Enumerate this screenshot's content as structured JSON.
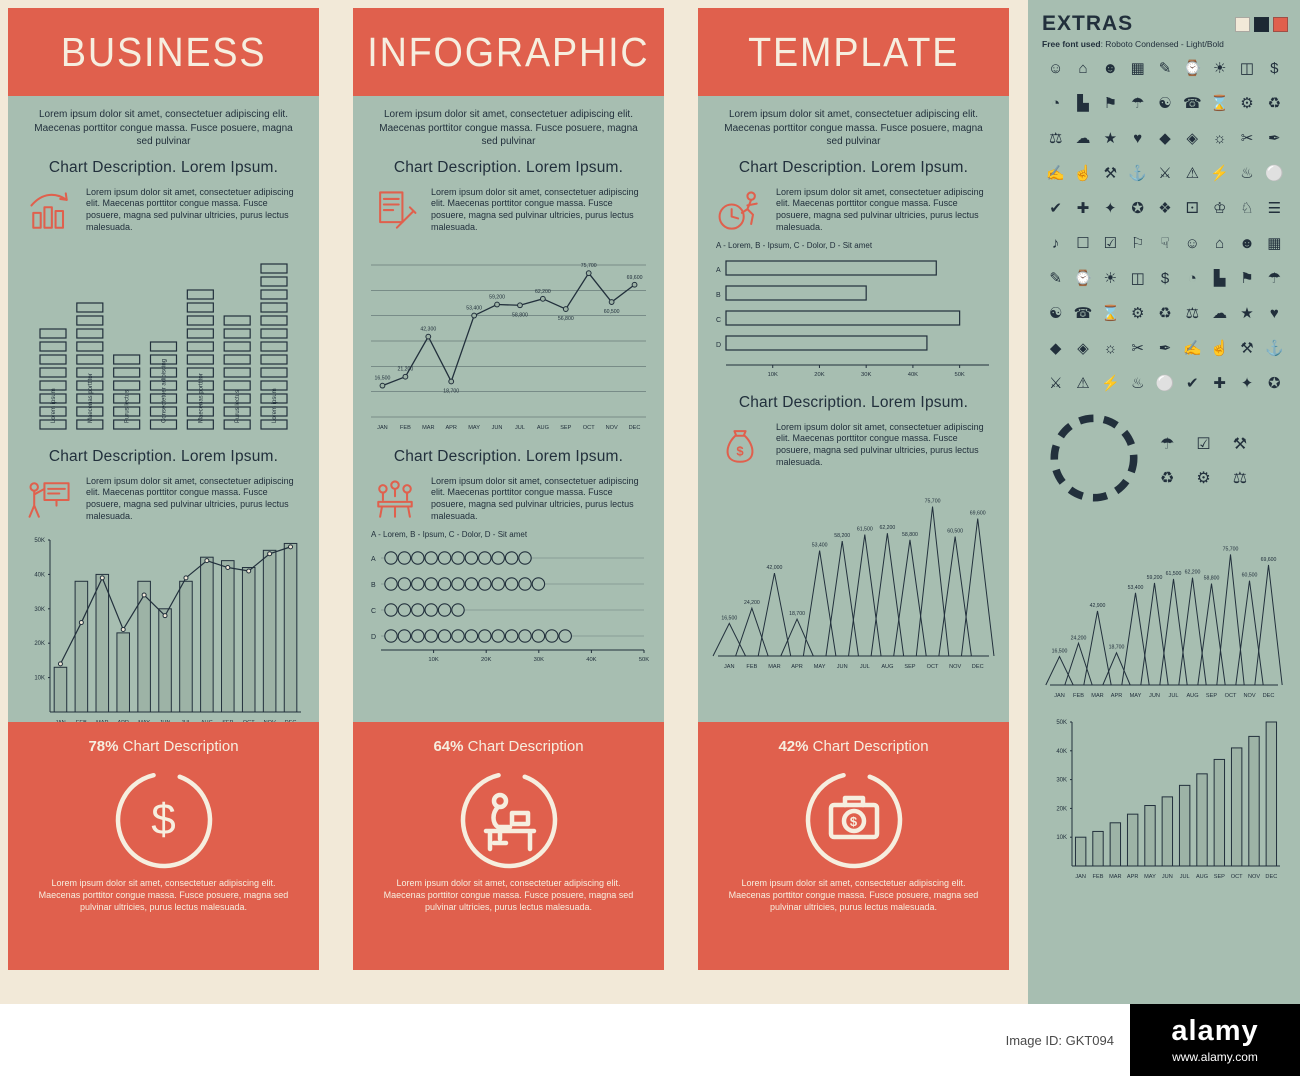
{
  "colors": {
    "cream": "#F2E9D8",
    "red": "#E0604D",
    "green": "#A7BEB1",
    "navy": "#22303C",
    "bar_fill": "#9DB3A6"
  },
  "panels": [
    {
      "title": "BUSINESS",
      "intro": "Lorem ipsum dolor sit amet, consectetuer adipiscing elit. Maecenas porttitor congue massa. Fusce posuere, magna sed pulvinar",
      "sections": [
        {
          "heading": "Chart Description. Lorem Ipsum.",
          "icon": "growth-chart-icon",
          "icon_glyph": "",
          "text": "Lorem ipsum dolor sit amet, consectetuer adipiscing elit. Maecenas porttitor congue massa. Fusce posuere, magna sed pulvinar ultricies, purus lectus malesuada."
        },
        {
          "heading": "Chart Description. Lorem Ipsum.",
          "icon": "presentation-person-icon",
          "icon_glyph": "",
          "text": "Lorem ipsum dolor sit amet, consectetuer adipiscing elit. Maecenas porttitor congue massa. Fusce posuere, magna sed pulvinar ultricies, purus lectus malesuada."
        }
      ],
      "footer": {
        "percent": "78%",
        "label": "Chart Description",
        "icon": "dollar-circle-icon",
        "icon_glyph": "$",
        "text": "Lorem ipsum dolor sit amet, consectetuer adipiscing elit. Maecenas porttitor congue massa. Fusce posuere, magna sed pulvinar ultricies, purus lectus malesuada."
      }
    },
    {
      "title": "INFOGRAPHIC",
      "intro": "Lorem ipsum dolor sit amet, consectetuer adipiscing elit. Maecenas porttitor congue massa. Fusce posuere, magna sed pulvinar",
      "sections": [
        {
          "heading": "Chart Description. Lorem Ipsum.",
          "icon": "document-pen-icon",
          "icon_glyph": "",
          "text": "Lorem ipsum dolor sit amet, consectetuer adipiscing elit. Maecenas porttitor congue massa. Fusce posuere, magna sed pulvinar ultricies, purus lectus malesuada."
        },
        {
          "heading": "Chart Description. Lorem Ipsum.",
          "icon": "meeting-icon",
          "icon_glyph": "",
          "text": "Lorem ipsum dolor sit amet, consectetuer adipiscing elit. Maecenas porttitor congue massa. Fusce posuere, magna sed pulvinar ultricies, purus lectus malesuada."
        }
      ],
      "footer": {
        "percent": "64%",
        "label": "Chart Description",
        "icon": "workstation-circle-icon",
        "icon_glyph": "",
        "text": "Lorem ipsum dolor sit amet, consectetuer adipiscing elit. Maecenas porttitor congue massa. Fusce posuere, magna sed pulvinar ultricies, purus lectus malesuada."
      }
    },
    {
      "title": "TEMPLATE",
      "intro": "Lorem ipsum dolor sit amet, consectetuer adipiscing elit. Maecenas porttitor congue massa. Fusce posuere, magna sed pulvinar",
      "sections": [
        {
          "heading": "Chart Description. Lorem Ipsum.",
          "icon": "deadline-runner-icon",
          "icon_glyph": "",
          "text": "Lorem ipsum dolor sit amet, consectetuer adipiscing elit. Maecenas porttitor congue massa. Fusce posuere, magna sed pulvinar ultricies, purus lectus malesuada."
        },
        {
          "heading": "Chart Description. Lorem Ipsum.",
          "icon": "money-bag-icon",
          "icon_glyph": "$",
          "text": "Lorem ipsum dolor sit amet, consectetuer adipiscing elit. Maecenas porttitor congue massa. Fusce posuere, magna sed pulvinar ultricies, purus lectus malesuada."
        }
      ],
      "footer": {
        "percent": "42%",
        "label": "Chart Description",
        "icon": "briefcase-circle-icon",
        "icon_glyph": "$",
        "text": "Lorem ipsum dolor sit amet, consectetuer adipiscing elit. Maecenas porttitor congue massa. Fusce posuere, magna sed pulvinar ultricies, purus lectus malesuada."
      }
    }
  ],
  "chart_data": [
    {
      "id": "business-equalizer",
      "type": "bar",
      "variant": "equalizer-stacked-segments",
      "grid": false,
      "columns": [
        {
          "label": "Lorem ipsum",
          "segments": 8
        },
        {
          "label": "Maecenas porttitor",
          "segments": 10
        },
        {
          "label": "Purus lectus",
          "segments": 6
        },
        {
          "label": "Consectetuer adipiscing",
          "segments": 7
        },
        {
          "label": "Maecenas porttitor",
          "segments": 11
        },
        {
          "label": "Purus lectus",
          "segments": 9
        },
        {
          "label": "Lorem ipsum",
          "segments": 13
        }
      ]
    },
    {
      "id": "business-monthly-bars",
      "type": "bar",
      "categories": [
        "JAN",
        "FEB",
        "MAR",
        "APR",
        "MAY",
        "JUN",
        "JUL",
        "AUG",
        "SEP",
        "OCT",
        "NOV",
        "DEC"
      ],
      "values": [
        13000,
        38000,
        40000,
        23000,
        38000,
        30000,
        38000,
        45000,
        44000,
        42000,
        47000,
        49000
      ],
      "overlay_line": [
        14000,
        26000,
        39000,
        24000,
        34000,
        28000,
        39000,
        44000,
        42000,
        41000,
        46000,
        48000
      ],
      "yticks": [
        "10K",
        "20K",
        "30K",
        "40K",
        "50K"
      ],
      "ymax": 50000,
      "grid": false
    },
    {
      "id": "infographic-line",
      "type": "line",
      "grid": true,
      "ymax": 80000,
      "x": [
        "JAN",
        "FEB",
        "MAR",
        "APR",
        "MAY",
        "JUN",
        "JUL",
        "AUG",
        "SEP",
        "OCT",
        "NOV",
        "DEC"
      ],
      "values": [
        16500,
        21200,
        42300,
        18700,
        53400,
        59200,
        58800,
        62200,
        56800,
        75700,
        60500,
        69600
      ],
      "labels": [
        "16,500",
        "21,200",
        "42,300",
        "18,700",
        "53,400",
        "59,200",
        "58,800",
        "62,200",
        "56,800",
        "75,700",
        "60,500",
        "69,600"
      ]
    },
    {
      "id": "infographic-dots",
      "type": "scatter",
      "variant": "dot-rows",
      "legend": "A - Lorem, B - Ipsum, C - Dolor, D - Sit amet",
      "rows": [
        {
          "label": "A",
          "count": 11
        },
        {
          "label": "B",
          "count": 12
        },
        {
          "label": "C",
          "count": 6
        },
        {
          "label": "D",
          "count": 14
        }
      ],
      "xticks": [
        "10K",
        "20K",
        "30K",
        "40K",
        "50K"
      ]
    },
    {
      "id": "template-hbars",
      "type": "bar",
      "variant": "horizontal",
      "legend": "A - Lorem, B - Ipsum, C - Dolor, D - Sit amet",
      "rows": [
        {
          "label": "A",
          "value": 45000
        },
        {
          "label": "B",
          "value": 30000
        },
        {
          "label": "C",
          "value": 50000
        },
        {
          "label": "D",
          "value": 43000
        }
      ],
      "xticks": [
        "10K",
        "20K",
        "30K",
        "40K",
        "50K"
      ],
      "xmax": 55000
    },
    {
      "id": "template-peaks",
      "type": "area",
      "variant": "peaks",
      "ymax": 80000,
      "x": [
        "JAN",
        "FEB",
        "MAR",
        "APR",
        "MAY",
        "JUN",
        "JUL",
        "AUG",
        "SEP",
        "OCT",
        "NOV",
        "DEC"
      ],
      "values": [
        16500,
        24200,
        42000,
        18700,
        53400,
        58200,
        61500,
        62200,
        58800,
        75700,
        60500,
        69600
      ],
      "labels": [
        "16,500",
        "24,200",
        "42,000",
        "18,700",
        "53,400",
        "58,200",
        "61,500",
        "62,200",
        "58,800",
        "75,700",
        "60,500",
        "69,600"
      ]
    },
    {
      "id": "extras-peaks",
      "type": "area",
      "variant": "peaks",
      "ymax": 80000,
      "x": [
        "JAN",
        "FEB",
        "MAR",
        "APR",
        "MAY",
        "JUN",
        "JUL",
        "AUG",
        "SEP",
        "OCT",
        "NOV",
        "DEC"
      ],
      "values": [
        16500,
        24200,
        42900,
        18700,
        53400,
        59200,
        61500,
        62200,
        58800,
        75700,
        60500,
        69600
      ],
      "labels": [
        "16,500",
        "24,200",
        "42,900",
        "18,700",
        "53,400",
        "59,200",
        "61,500",
        "62,200",
        "58,800",
        "75,700",
        "60,500",
        "69,600"
      ]
    },
    {
      "id": "extras-bars",
      "type": "bar",
      "categories": [
        "JAN",
        "FEB",
        "MAR",
        "APR",
        "MAY",
        "JUN",
        "JUL",
        "AUG",
        "SEP",
        "OCT",
        "NOV",
        "DEC"
      ],
      "values": [
        10000,
        12000,
        15000,
        18000,
        21000,
        24000,
        28000,
        32000,
        37000,
        41000,
        45000,
        50000
      ],
      "yticks": [
        "10K",
        "20K",
        "30K",
        "40K",
        "50K"
      ],
      "ymax": 50000,
      "grid": false
    }
  ],
  "extras": {
    "title": "EXTRAS",
    "font_note_bold": "Free font used",
    "font_note_rest": ": Roboto Condensed - Light/Bold",
    "swatches": [
      {
        "name": "cream",
        "color": "#F2E9D8"
      },
      {
        "name": "dark",
        "color": "#1C2833"
      },
      {
        "name": "red",
        "color": "#E0604D"
      }
    ],
    "icons": [
      {
        "n": "people-money-icon",
        "g": "☺"
      },
      {
        "n": "building-icon",
        "g": "⌂"
      },
      {
        "n": "team-icon",
        "g": "☻"
      },
      {
        "n": "meeting-icon",
        "g": "▦"
      },
      {
        "n": "document-edit-icon",
        "g": "✎"
      },
      {
        "n": "workstation-icon",
        "g": "⌚"
      },
      {
        "n": "idea-icon",
        "g": "☀"
      },
      {
        "n": "stats-window-icon",
        "g": "◫"
      },
      {
        "n": "dollar-icon",
        "g": "$"
      },
      {
        "n": "mind-money-icon",
        "g": "◔"
      },
      {
        "n": "podium-chart-icon",
        "g": "▙"
      },
      {
        "n": "currency-flag-icon",
        "g": "⚑"
      },
      {
        "n": "user-umbrella-icon",
        "g": "☂"
      },
      {
        "n": "growth-check-icon",
        "g": "☯"
      },
      {
        "n": "contact-icon",
        "g": "☎"
      },
      {
        "n": "head-gear-icon",
        "g": "⌛"
      },
      {
        "n": "bar-graph-icon",
        "g": "⚙"
      },
      {
        "n": "person-flag-icon",
        "g": "♻"
      },
      {
        "n": "balance-icon",
        "g": "⚖"
      },
      {
        "n": "cloud-icon",
        "g": "☁"
      },
      {
        "n": "presentation-icon",
        "g": "★"
      },
      {
        "n": "businessman-icon",
        "g": "♥"
      },
      {
        "n": "globe-user-icon",
        "g": "◆"
      },
      {
        "n": "trend-line-icon",
        "g": "◈"
      },
      {
        "n": "user-podium-icon",
        "g": "☼"
      },
      {
        "n": "handshake-icon",
        "g": "✂"
      },
      {
        "n": "world-money-icon",
        "g": "✒"
      },
      {
        "n": "trend-arrow-icon",
        "g": "✍"
      },
      {
        "n": "flipchart-icon",
        "g": "☝"
      },
      {
        "n": "team-leader-icon",
        "g": "⚒"
      },
      {
        "n": "person-growth-icon",
        "g": "⚓"
      },
      {
        "n": "column-chart-icon",
        "g": "⚔"
      },
      {
        "n": "target-icon",
        "g": "⚠"
      },
      {
        "n": "clock-person-icon",
        "g": "⚡"
      },
      {
        "n": "coin-flow-icon",
        "g": "♨"
      },
      {
        "n": "network-icon",
        "g": "⚪"
      },
      {
        "n": "alarm-icon",
        "g": "✔"
      },
      {
        "n": "coworkers-icon",
        "g": "✚"
      },
      {
        "n": "diamond-icon",
        "g": "✦"
      },
      {
        "n": "heart-icon",
        "g": "✪"
      },
      {
        "n": "bubble-chart-icon",
        "g": "❖"
      },
      {
        "n": "star-person-icon",
        "g": "⚀"
      },
      {
        "n": "award-icon",
        "g": "♔"
      },
      {
        "n": "shield-check-icon",
        "g": "♘"
      },
      {
        "n": "vault-icon",
        "g": "☰"
      },
      {
        "n": "shield-icon",
        "g": "♪"
      },
      {
        "n": "mountain-flag-icon",
        "g": "☐"
      },
      {
        "n": "money-bag-icon",
        "g": "☑"
      },
      {
        "n": "piggy-bank-icon",
        "g": "⚐"
      },
      {
        "n": "case-chart-icon",
        "g": "☟"
      },
      {
        "n": "exchange-icon",
        "g": "☺"
      },
      {
        "n": "calculator-icon",
        "g": "⌂"
      },
      {
        "n": "globe-stand-icon",
        "g": "☻"
      },
      {
        "n": "strategy-icon",
        "g": "▦"
      },
      {
        "n": "wallet-icon",
        "g": "✎"
      },
      {
        "n": "drone-icon",
        "g": "⌚"
      },
      {
        "n": "pie-chart-icon",
        "g": "☀"
      },
      {
        "n": "analyst-icon",
        "g": "◫"
      },
      {
        "n": "speaker-dollar-icon",
        "g": "$"
      },
      {
        "n": "projector-icon",
        "g": "◔"
      },
      {
        "n": "storefront-icon",
        "g": "▙"
      },
      {
        "n": "user-settings-icon",
        "g": "⚑"
      },
      {
        "n": "shield-star-icon",
        "g": "☂"
      },
      {
        "n": "credit-card-icon",
        "g": "☯"
      },
      {
        "n": "board-dollar-icon",
        "g": "☎"
      },
      {
        "n": "shop-icon",
        "g": "⌛"
      },
      {
        "n": "admin-icon",
        "g": "⚙"
      },
      {
        "n": "conference-icon",
        "g": "♻"
      },
      {
        "n": "badge-icon",
        "g": "⚖"
      },
      {
        "n": "coin-icon",
        "g": "☁"
      },
      {
        "n": "suitcase-icon",
        "g": "★"
      },
      {
        "n": "globe-icon",
        "g": "♥"
      },
      {
        "n": "dollar-target-icon",
        "g": "◆"
      },
      {
        "n": "briefcase-icon",
        "g": "◈"
      },
      {
        "n": "world-icon",
        "g": "☼"
      },
      {
        "n": "audience-icon",
        "g": "✂"
      },
      {
        "n": "lamp-post-icon",
        "g": "✒"
      },
      {
        "n": "recycle-icon",
        "g": "✍"
      },
      {
        "n": "calc-device-icon",
        "g": "☝"
      },
      {
        "n": "signpost-icon",
        "g": "⚒"
      },
      {
        "n": "safe-icon",
        "g": "⚓"
      },
      {
        "n": "finance-icon",
        "g": "⚔"
      },
      {
        "n": "pointer-icon",
        "g": "⚠"
      },
      {
        "n": "safe-box-icon",
        "g": "⚡"
      },
      {
        "n": "gear-user-icon",
        "g": "♨"
      },
      {
        "n": "chat-icon",
        "g": "⚪"
      },
      {
        "n": "doc-list-icon",
        "g": "✔"
      },
      {
        "n": "umbrella-icon",
        "g": "✚"
      },
      {
        "n": "checklist-icon",
        "g": "✦"
      },
      {
        "n": "cloud-storage-icon",
        "g": "✪"
      }
    ],
    "side_icons": [
      {
        "n": "team-umbrella-icon",
        "g": "☂"
      },
      {
        "n": "list-check-icon",
        "g": "☑"
      },
      {
        "n": "worker-icon",
        "g": "⚒"
      },
      {
        "n": "sync-users-icon",
        "g": "♻"
      },
      {
        "n": "gear-icon",
        "g": "⚙"
      },
      {
        "n": "scales-icon",
        "g": "⚖"
      }
    ]
  },
  "watermark": {
    "image_id": "Image ID: GKT094",
    "brand": "alamy",
    "url": "www.alamy.com"
  }
}
